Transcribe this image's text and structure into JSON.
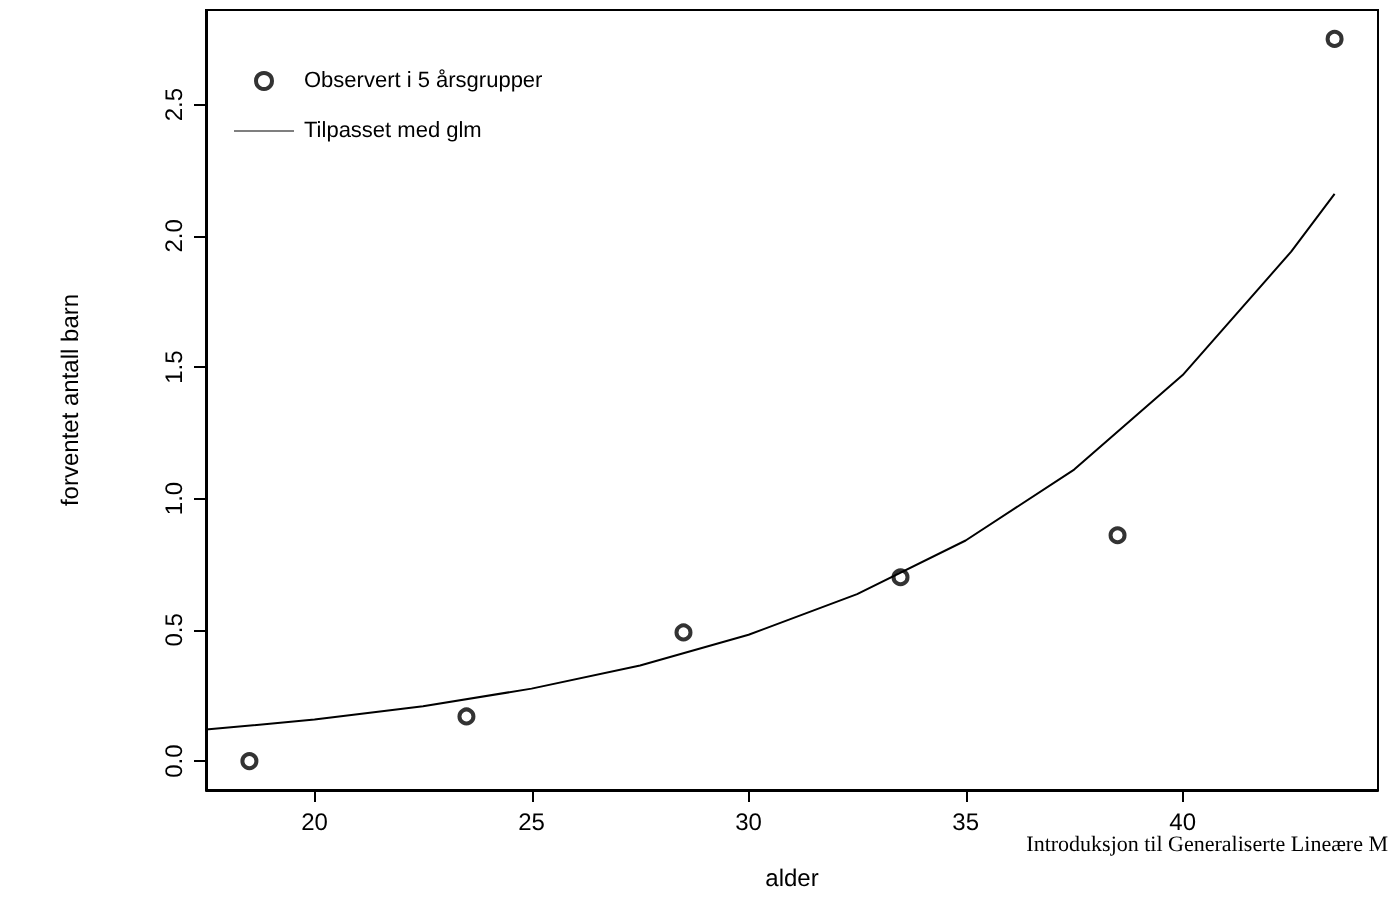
{
  "chart_data": {
    "type": "scatter",
    "xlabel": "alder",
    "ylabel": "forventet antall barn",
    "legend": "top left",
    "grid": false,
    "xlim": [
      17.5,
      44.5
    ],
    "xticks": [
      20,
      25,
      30,
      35,
      40
    ],
    "ylim": [
      -0.11,
      2.86
    ],
    "yticks": [
      {
        "value": 0,
        "label": "0.0"
      },
      0.5,
      {
        "value": 1,
        "label": "1.0"
      },
      1.5,
      {
        "value": 2,
        "label": "2.0"
      },
      2.5
    ],
    "series": [
      {
        "name": "Observert i 5 årsgrupper",
        "marker": "circle",
        "color": "#000000",
        "x": [
          18.5,
          23.5,
          28.5,
          33.5,
          38.5,
          43.5
        ],
        "values": [
          0,
          0.17,
          0.49,
          0.7,
          0.86,
          2.75
        ]
      },
      {
        "name": "Tilpasset med glm",
        "type": "line",
        "marker": "none",
        "line_style": "solid",
        "color": "#000000",
        "x": [
          17.5,
          20,
          22.5,
          25,
          27.5,
          30,
          32.5,
          35,
          37.5,
          40,
          42.5,
          43.5
        ],
        "values": [
          0.12,
          0.158,
          0.209,
          0.276,
          0.364,
          0.481,
          0.636,
          0.84,
          1.11,
          1.47,
          1.94,
          2.16
        ]
      }
    ],
    "annotations": [
      "Introduksjon til Generaliserte Lineære M"
    ]
  }
}
